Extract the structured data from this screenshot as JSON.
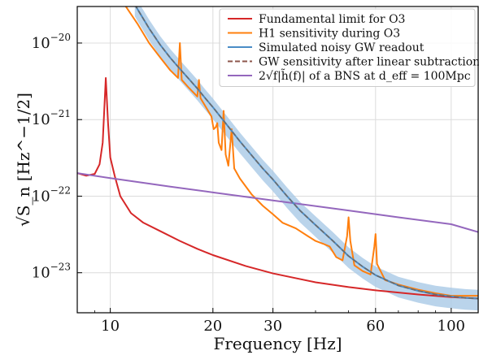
{
  "chart_data": {
    "type": "line",
    "title": "",
    "xlabel": "Frequency [Hz]",
    "ylabel": "√S_n [Hz^−1/2]",
    "x_scale": "log",
    "y_scale": "log",
    "xlim": [
      8,
      120
    ],
    "ylim": [
      3e-24,
      3e-20
    ],
    "grid": true,
    "legend_position": "top-right",
    "x_ticks": [
      {
        "value": 10,
        "label": "10"
      },
      {
        "value": 20,
        "label": "20"
      },
      {
        "value": 30,
        "label": "30"
      },
      {
        "value": 60,
        "label": "60"
      },
      {
        "value": 100,
        "label": "100"
      }
    ],
    "y_ticks": [
      {
        "value": 1e-20,
        "base": "10",
        "exp": "−20"
      },
      {
        "value": 1e-21,
        "base": "10",
        "exp": "−21"
      },
      {
        "value": 1e-22,
        "base": "10",
        "exp": "−22"
      },
      {
        "value": 1e-23,
        "base": "10",
        "exp": "−23"
      }
    ],
    "series": [
      {
        "name": "Fundamental limit for O3",
        "color": "#d62728",
        "style": "solid",
        "points": [
          [
            8.0,
            2e-22
          ],
          [
            8.5,
            1.85e-22
          ],
          [
            9.0,
            1.95e-22
          ],
          [
            9.3,
            2.6e-22
          ],
          [
            9.5,
            5e-22
          ],
          [
            9.7,
            3.5e-21
          ],
          [
            9.85,
            9e-22
          ],
          [
            10.0,
            3.2e-22
          ],
          [
            10.3,
            1.85e-22
          ],
          [
            10.7,
            1e-22
          ],
          [
            11.5,
            6e-23
          ],
          [
            12.5,
            4.5e-23
          ],
          [
            14,
            3.5e-23
          ],
          [
            16,
            2.6e-23
          ],
          [
            18,
            2.05e-23
          ],
          [
            20,
            1.7e-23
          ],
          [
            25,
            1.22e-23
          ],
          [
            30,
            9.8e-24
          ],
          [
            40,
            7.5e-24
          ],
          [
            50,
            6.5e-24
          ],
          [
            60,
            5.9e-24
          ],
          [
            80,
            5.2e-24
          ],
          [
            100,
            4.8e-24
          ],
          [
            120,
            4.6e-24
          ]
        ]
      },
      {
        "name": "H1 sensitivity during O3",
        "color": "#ff7f0e",
        "style": "solid",
        "points": [
          [
            11.0,
            3.2e-20
          ],
          [
            12,
            1.8e-20
          ],
          [
            13,
            1e-20
          ],
          [
            14,
            6.5e-21
          ],
          [
            15,
            4.4e-21
          ],
          [
            15.8,
            3.5e-21
          ],
          [
            16.0,
            1e-20
          ],
          [
            16.2,
            3.3e-21
          ],
          [
            17,
            2.6e-21
          ],
          [
            18.0,
            2e-21
          ],
          [
            18.2,
            3.3e-21
          ],
          [
            18.4,
            1.9e-21
          ],
          [
            19,
            1.5e-21
          ],
          [
            19.8,
            1.1e-21
          ],
          [
            20.1,
            7.5e-22
          ],
          [
            20.4,
            8e-22
          ],
          [
            20.6,
            9e-22
          ],
          [
            20.8,
            5e-22
          ],
          [
            21.2,
            4e-22
          ],
          [
            21.5,
            1.3e-21
          ],
          [
            21.8,
            3.5e-22
          ],
          [
            22.2,
            2.5e-22
          ],
          [
            22.7,
            7.5e-22
          ],
          [
            23.1,
            2.3e-22
          ],
          [
            24,
            1.7e-22
          ],
          [
            26,
            1.05e-22
          ],
          [
            28,
            7.5e-23
          ],
          [
            30,
            5.8e-23
          ],
          [
            32,
            4.5e-23
          ],
          [
            35,
            3.8e-23
          ],
          [
            38,
            3e-23
          ],
          [
            40,
            2.6e-23
          ],
          [
            42,
            2.4e-23
          ],
          [
            44,
            2.2e-23
          ],
          [
            46,
            1.6e-23
          ],
          [
            48,
            1.45e-23
          ],
          [
            49.5,
            3e-23
          ],
          [
            50,
            5.3e-23
          ],
          [
            50.6,
            2.6e-23
          ],
          [
            52,
            1.25e-23
          ],
          [
            55,
            1.05e-23
          ],
          [
            58,
            9.5e-24
          ],
          [
            59.5,
            2.2e-23
          ],
          [
            60,
            3.2e-23
          ],
          [
            60.6,
            1.3e-23
          ],
          [
            64,
            8e-24
          ],
          [
            70,
            7e-24
          ],
          [
            80,
            6e-24
          ],
          [
            90,
            5.4e-24
          ],
          [
            100,
            5e-24
          ],
          [
            110,
            5e-24
          ],
          [
            120,
            5e-24
          ]
        ]
      },
      {
        "name": "Simulated noisy GW readout",
        "color": "#4a8cc6",
        "style": "solid",
        "band_fraction": 0.3,
        "points": [
          [
            11.8,
            3.2e-20
          ],
          [
            12,
            2.8e-20
          ],
          [
            13,
            1.55e-20
          ],
          [
            14,
            9.5e-21
          ],
          [
            15,
            6.4e-21
          ],
          [
            16,
            4.6e-21
          ],
          [
            17,
            3.4e-21
          ],
          [
            18,
            2.55e-21
          ],
          [
            19,
            1.9e-21
          ],
          [
            20,
            1.45e-21
          ],
          [
            22,
            8.5e-22
          ],
          [
            24,
            5.2e-22
          ],
          [
            26,
            3.4e-22
          ],
          [
            28,
            2.3e-22
          ],
          [
            30,
            1.65e-22
          ],
          [
            33,
            1e-22
          ],
          [
            36,
            6.5e-23
          ],
          [
            40,
            4.2e-23
          ],
          [
            45,
            2.6e-23
          ],
          [
            50,
            1.65e-23
          ],
          [
            55,
            1.2e-23
          ],
          [
            60,
            9.3e-24
          ],
          [
            70,
            6.8e-24
          ],
          [
            80,
            5.8e-24
          ],
          [
            90,
            5.2e-24
          ],
          [
            100,
            4.9e-24
          ],
          [
            110,
            4.7e-24
          ],
          [
            120,
            4.6e-24
          ]
        ]
      },
      {
        "name": "GW sensitivity after linear subtraction",
        "color": "#8c564b",
        "style": "dashed",
        "points": [
          [
            11.8,
            3.2e-20
          ],
          [
            12,
            2.8e-20
          ],
          [
            13,
            1.55e-20
          ],
          [
            14,
            9.5e-21
          ],
          [
            15,
            6.4e-21
          ],
          [
            16,
            4.6e-21
          ],
          [
            17,
            3.4e-21
          ],
          [
            18,
            2.55e-21
          ],
          [
            19,
            1.9e-21
          ],
          [
            20,
            1.45e-21
          ],
          [
            22,
            8.5e-22
          ],
          [
            24,
            5.2e-22
          ],
          [
            26,
            3.4e-22
          ],
          [
            28,
            2.3e-22
          ],
          [
            30,
            1.65e-22
          ],
          [
            33,
            1e-22
          ],
          [
            36,
            6.5e-23
          ],
          [
            40,
            4.2e-23
          ],
          [
            45,
            2.6e-23
          ],
          [
            50,
            1.65e-23
          ],
          [
            55,
            1.2e-23
          ],
          [
            60,
            9.3e-24
          ],
          [
            70,
            6.8e-24
          ],
          [
            80,
            5.8e-24
          ],
          [
            90,
            5.2e-24
          ],
          [
            100,
            4.9e-24
          ],
          [
            110,
            4.7e-24
          ],
          [
            120,
            4.6e-24
          ]
        ]
      },
      {
        "name": "2√f|h̃(f)| of a BNS at d_eff = 100Mpc",
        "color": "#9467bd",
        "style": "solid",
        "points": [
          [
            8,
            2e-22
          ],
          [
            10,
            1.72e-22
          ],
          [
            15,
            1.33e-22
          ],
          [
            20,
            1.12e-22
          ],
          [
            30,
            8.8e-23
          ],
          [
            50,
            6.5e-23
          ],
          [
            70,
            5.3e-23
          ],
          [
            100,
            4.3e-23
          ],
          [
            120,
            3.4e-23
          ]
        ]
      }
    ],
    "legend": [
      {
        "label": "Fundamental limit for O3",
        "color": "#d62728",
        "style": "solid"
      },
      {
        "label": "H1 sensitivity during O3",
        "color": "#ff7f0e",
        "style": "solid"
      },
      {
        "label": "Simulated noisy GW readout",
        "color": "#4a8cc6",
        "style": "solid"
      },
      {
        "label": "GW sensitivity after linear subtraction",
        "color": "#8c564b",
        "style": "dashed"
      },
      {
        "label": "2√f|h̃(f)| of a BNS at d_eff = 100Mpc",
        "color": "#9467bd",
        "style": "solid"
      }
    ]
  }
}
